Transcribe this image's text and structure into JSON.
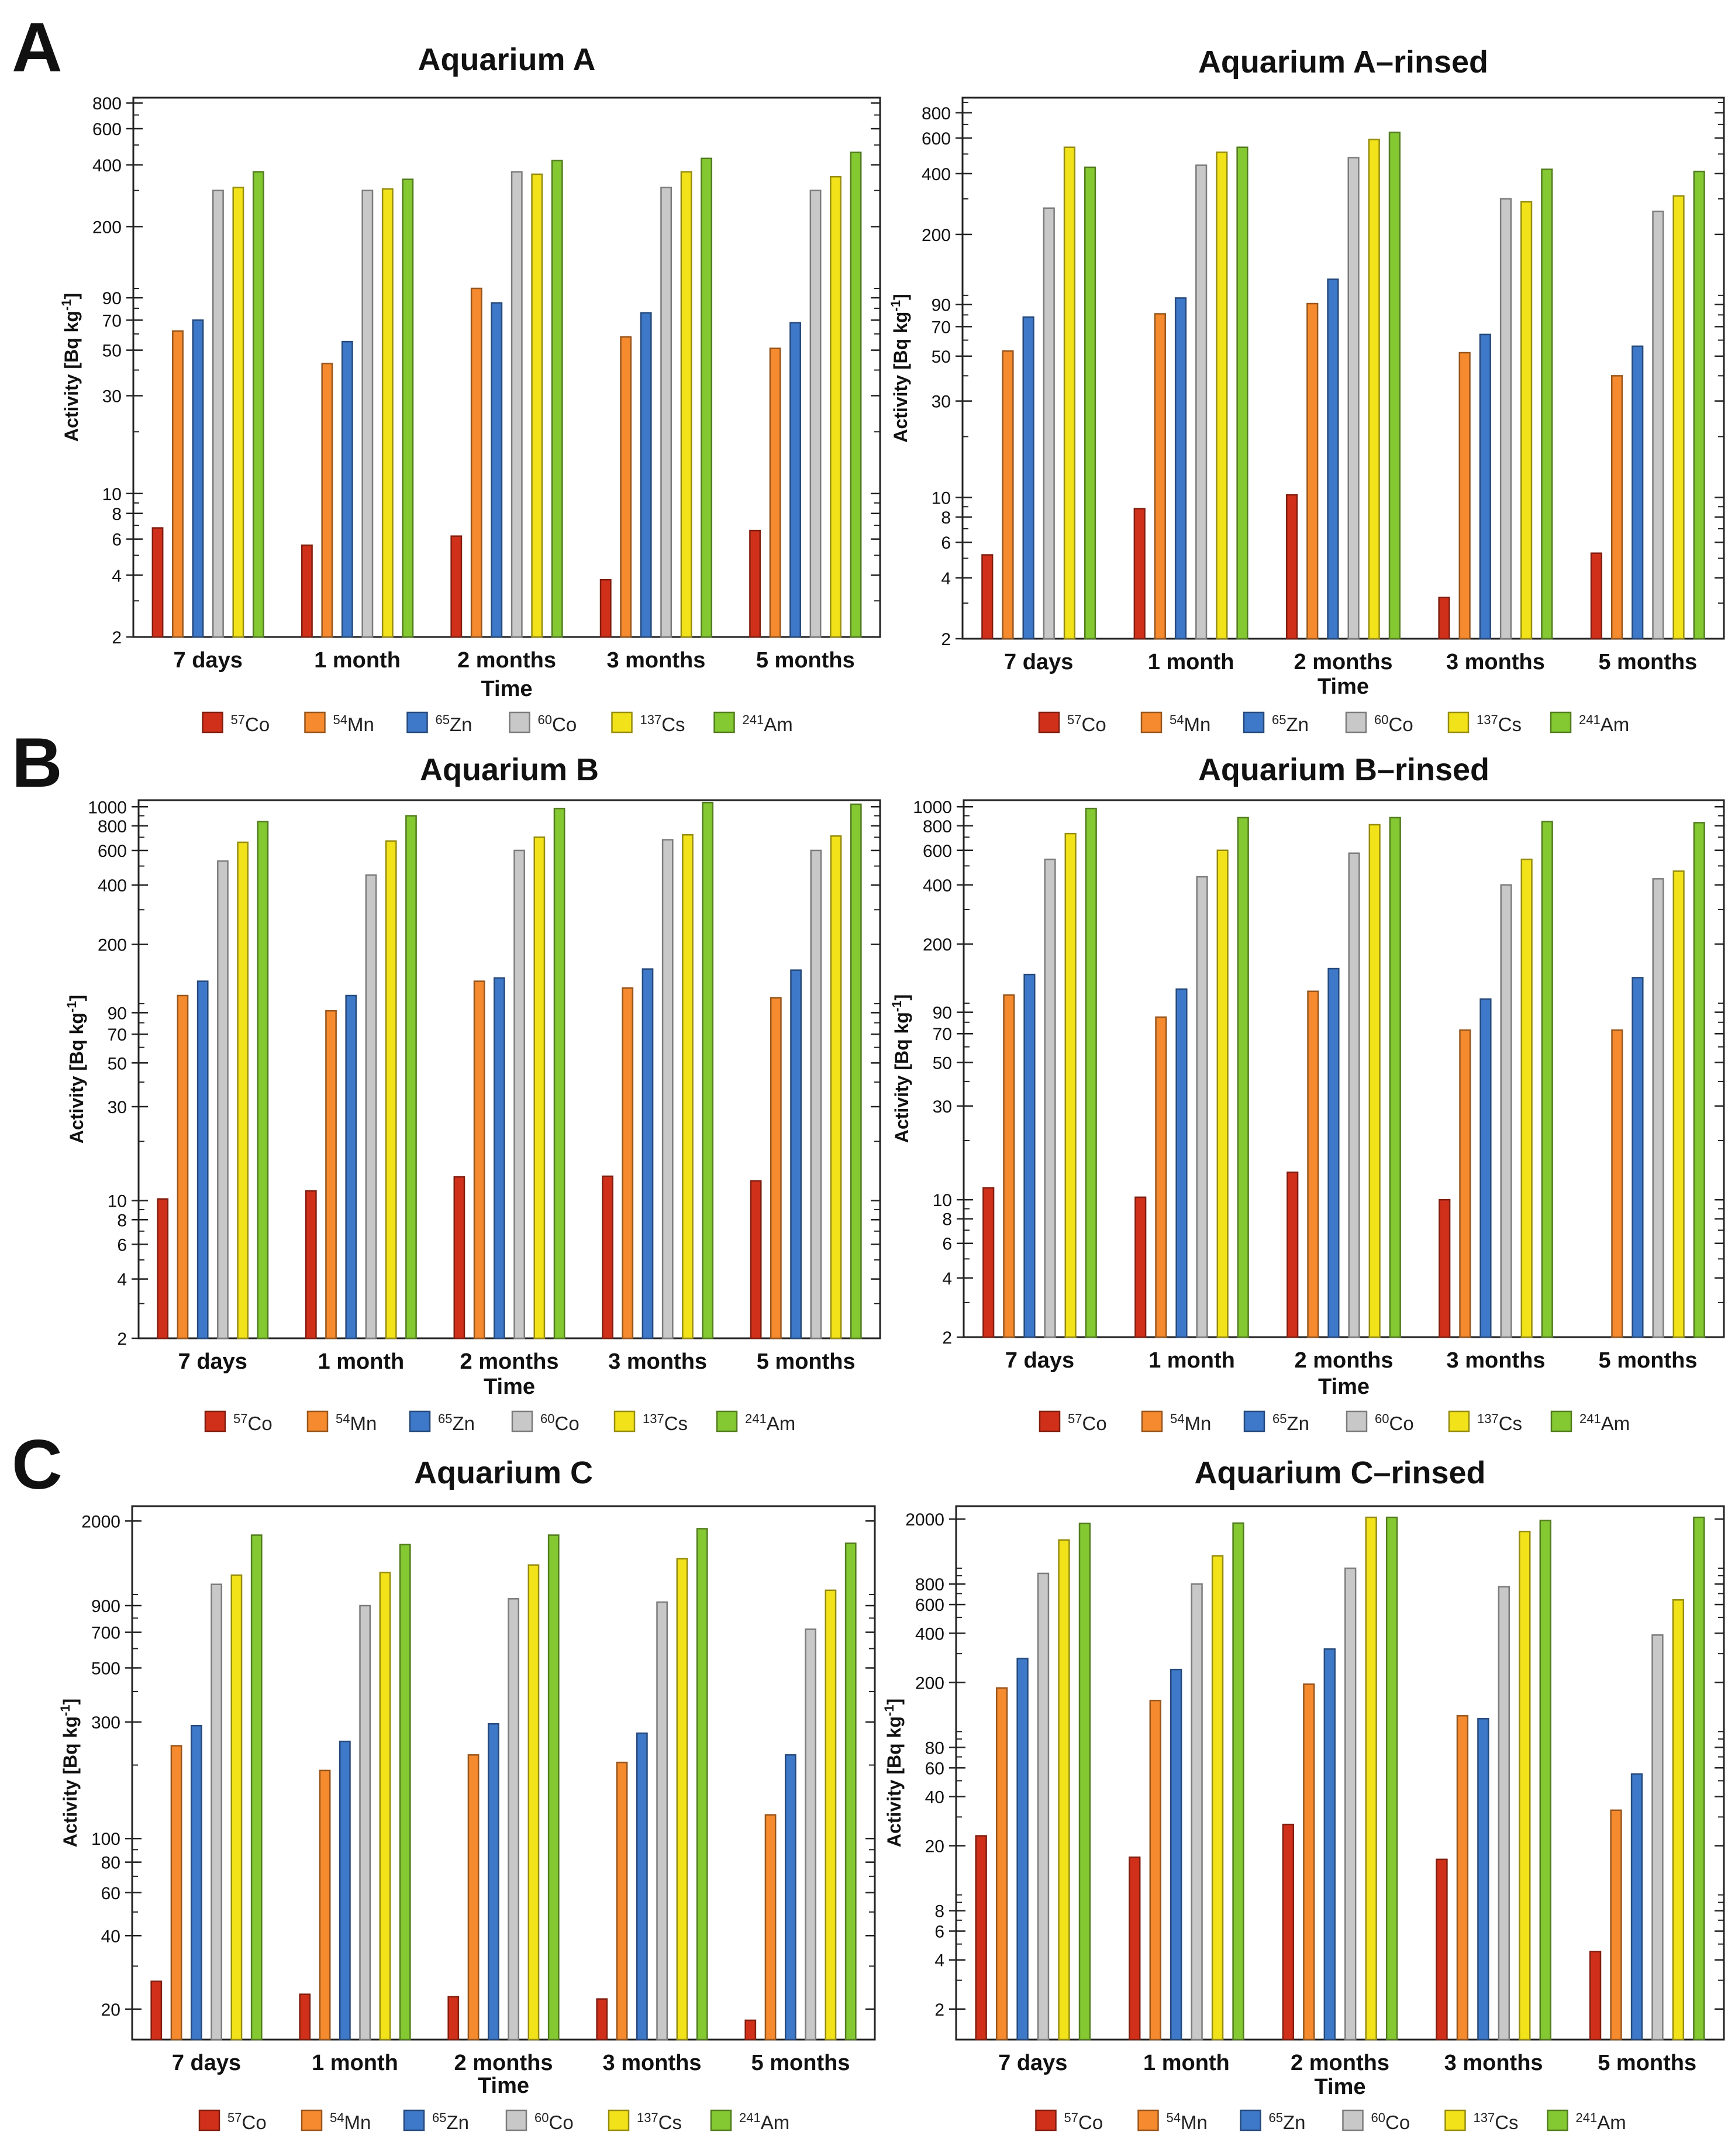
{
  "figure": {
    "panel_letters": [
      "A",
      "B",
      "C"
    ],
    "series_names": [
      "57Co",
      "54Mn",
      "65Zn",
      "60Co",
      "137Cs",
      "241Am"
    ],
    "legend": [
      {
        "sup": "57",
        "el": "Co",
        "color": "#d0301a"
      },
      {
        "sup": "54",
        "el": "Mn",
        "color": "#f58a2e"
      },
      {
        "sup": "65",
        "el": "Zn",
        "color": "#3e78c8"
      },
      {
        "sup": "60",
        "el": "Co",
        "color": "#c8c8c8"
      },
      {
        "sup": "137",
        "el": "Cs",
        "color": "#f2e21a"
      },
      {
        "sup": "241",
        "el": "Am",
        "color": "#84c832"
      }
    ]
  },
  "chart_data": [
    {
      "type": "bar",
      "scale": "log",
      "title": "Aquarium A",
      "xlabel": "Time",
      "ylabel": "Activity [Bq kg-1]",
      "categories": [
        "7 days",
        "1 month",
        "2 months",
        "3 months",
        "5 months"
      ],
      "ylim": [
        2,
        850
      ],
      "yticks": [
        2,
        4,
        6,
        8,
        10,
        30,
        50,
        70,
        90,
        200,
        400,
        600,
        800
      ],
      "series": [
        {
          "name": "57Co",
          "values": [
            6.8,
            5.6,
            6.2,
            3.8,
            6.6
          ]
        },
        {
          "name": "54Mn",
          "values": [
            62,
            43,
            100,
            58,
            51
          ]
        },
        {
          "name": "65Zn",
          "values": [
            70,
            55,
            85,
            76,
            68
          ]
        },
        {
          "name": "60Co",
          "values": [
            300,
            300,
            370,
            310,
            300
          ]
        },
        {
          "name": "137Cs",
          "values": [
            310,
            305,
            360,
            370,
            350
          ]
        },
        {
          "name": "241Am",
          "values": [
            370,
            340,
            420,
            430,
            460
          ]
        }
      ]
    },
    {
      "type": "bar",
      "scale": "log",
      "title": "Aquarium A–rinsed",
      "xlabel": "Time",
      "ylabel": "Activity [Bq kg-1]",
      "categories": [
        "7 days",
        "1 month",
        "2 months",
        "3 months",
        "5 months"
      ],
      "ylim": [
        2,
        950
      ],
      "yticks": [
        2,
        4,
        6,
        8,
        10,
        30,
        50,
        70,
        90,
        200,
        400,
        600,
        800
      ],
      "series": [
        {
          "name": "57Co",
          "values": [
            5.2,
            8.8,
            10.3,
            3.2,
            5.3
          ]
        },
        {
          "name": "54Mn",
          "values": [
            53,
            81,
            91,
            52,
            40
          ]
        },
        {
          "name": "65Zn",
          "values": [
            78,
            97,
            120,
            64,
            56
          ]
        },
        {
          "name": "60Co",
          "values": [
            270,
            440,
            480,
            300,
            260
          ]
        },
        {
          "name": "137Cs",
          "values": [
            540,
            510,
            590,
            290,
            310
          ]
        },
        {
          "name": "241Am",
          "values": [
            430,
            540,
            640,
            420,
            410
          ]
        }
      ]
    },
    {
      "type": "bar",
      "scale": "log",
      "title": "Aquarium B",
      "xlabel": "Time",
      "ylabel": "Activity [Bq kg-1]",
      "categories": [
        "7 days",
        "1 month",
        "2 months",
        "3 months",
        "5 months"
      ],
      "ylim": [
        2,
        1080
      ],
      "yticks": [
        2,
        4,
        6,
        8,
        10,
        30,
        50,
        70,
        90,
        200,
        400,
        600,
        800,
        1000
      ],
      "series": [
        {
          "name": "57Co",
          "values": [
            10.2,
            11.2,
            13.2,
            13.3,
            12.6
          ]
        },
        {
          "name": "54Mn",
          "values": [
            110,
            92,
            130,
            120,
            107
          ]
        },
        {
          "name": "65Zn",
          "values": [
            130,
            110,
            135,
            150,
            148
          ]
        },
        {
          "name": "60Co",
          "values": [
            530,
            450,
            600,
            680,
            600
          ]
        },
        {
          "name": "137Cs",
          "values": [
            660,
            670,
            700,
            720,
            710
          ]
        },
        {
          "name": "241Am",
          "values": [
            840,
            900,
            980,
            1050,
            1030
          ]
        }
      ]
    },
    {
      "type": "bar",
      "scale": "log",
      "title": "Aquarium B–rinsed",
      "xlabel": "Time",
      "ylabel": "Activity [Bq kg-1]",
      "categories": [
        "7 days",
        "1 month",
        "2 months",
        "3 months",
        "5 months"
      ],
      "ylim": [
        2,
        1080
      ],
      "yticks": [
        2,
        4,
        6,
        8,
        10,
        30,
        50,
        70,
        90,
        200,
        400,
        600,
        800,
        1000
      ],
      "series": [
        {
          "name": "57Co",
          "values": [
            11.5,
            10.3,
            13.8,
            10,
            null
          ]
        },
        {
          "name": "54Mn",
          "values": [
            110,
            85,
            115,
            73,
            73
          ]
        },
        {
          "name": "65Zn",
          "values": [
            140,
            118,
            150,
            105,
            135
          ]
        },
        {
          "name": "60Co",
          "values": [
            540,
            440,
            580,
            400,
            430
          ]
        },
        {
          "name": "137Cs",
          "values": [
            730,
            600,
            810,
            540,
            470
          ]
        },
        {
          "name": "241Am",
          "values": [
            980,
            880,
            880,
            840,
            830
          ]
        }
      ]
    },
    {
      "type": "bar",
      "scale": "log",
      "title": "Aquarium C",
      "xlabel": "Time",
      "ylabel": "Activity [Bq kg-1]",
      "categories": [
        "7 days",
        "1 month",
        "2 months",
        "3 months",
        "5 months"
      ],
      "ylim": [
        15,
        2300
      ],
      "yticks": [
        20,
        40,
        60,
        80,
        100,
        300,
        500,
        700,
        900,
        2000
      ],
      "series": [
        {
          "name": "57Co",
          "values": [
            26,
            23,
            22.5,
            22,
            18
          ]
        },
        {
          "name": "54Mn",
          "values": [
            240,
            190,
            220,
            205,
            125
          ]
        },
        {
          "name": "65Zn",
          "values": [
            290,
            250,
            295,
            270,
            220
          ]
        },
        {
          "name": "60Co",
          "values": [
            1100,
            900,
            960,
            930,
            720
          ]
        },
        {
          "name": "137Cs",
          "values": [
            1200,
            1230,
            1320,
            1400,
            1040
          ]
        },
        {
          "name": "241Am",
          "values": [
            1750,
            1600,
            1750,
            1860,
            1620
          ]
        }
      ]
    },
    {
      "type": "bar",
      "scale": "log",
      "title": "Aquarium C–rinsed",
      "xlabel": "Time",
      "ylabel": "Activity [Bq kg-1]",
      "categories": [
        "7 days",
        "1 month",
        "2 months",
        "3 months",
        "5 months"
      ],
      "ylim": [
        1.3,
        2400
      ],
      "yticks": [
        2,
        4,
        6,
        8,
        20,
        40,
        60,
        80,
        200,
        400,
        600,
        800,
        2000
      ],
      "series": [
        {
          "name": "57Co",
          "values": [
            23,
            17,
            27,
            16.5,
            4.5
          ]
        },
        {
          "name": "54Mn",
          "values": [
            185,
            155,
            195,
            125,
            33
          ]
        },
        {
          "name": "65Zn",
          "values": [
            280,
            240,
            320,
            120,
            55
          ]
        },
        {
          "name": "60Co",
          "values": [
            930,
            800,
            1000,
            770,
            390
          ]
        },
        {
          "name": "137Cs",
          "values": [
            1490,
            1190,
            2050,
            1680,
            640
          ]
        },
        {
          "name": "241Am",
          "values": [
            1880,
            1890,
            2050,
            1960,
            2050
          ]
        }
      ]
    }
  ]
}
